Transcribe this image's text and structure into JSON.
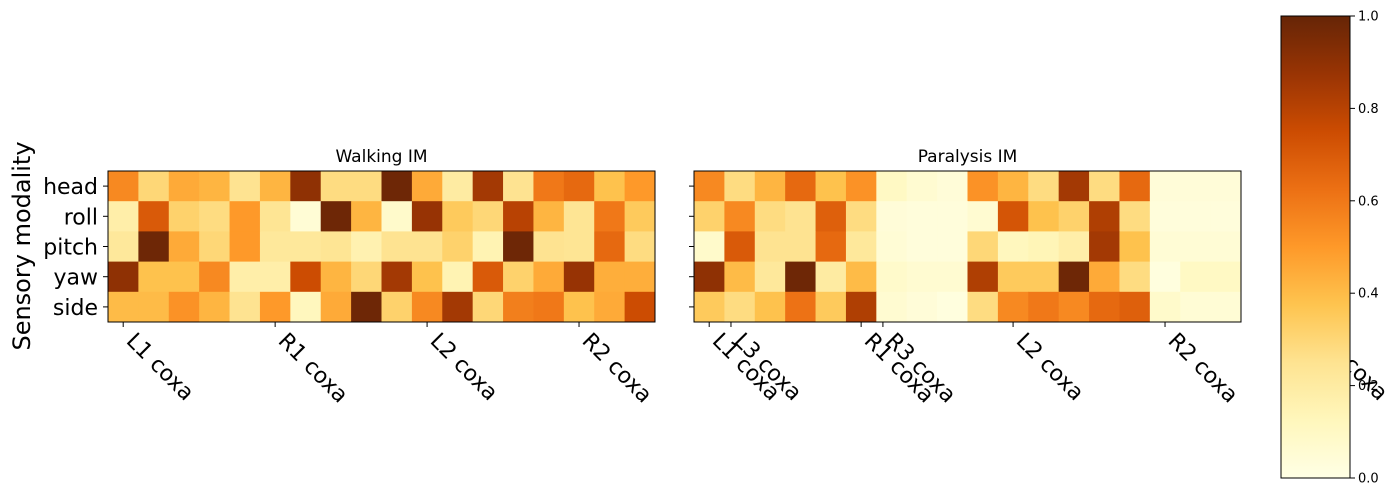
{
  "chart_data": {
    "type": "heatmap",
    "ylabel": "Sensory modality",
    "rows": [
      "head",
      "roll",
      "pitch",
      "yaw",
      "side"
    ],
    "xtick_labels": [
      "L1 coxa",
      "R1 coxa",
      "L2 coxa",
      "R2 coxa",
      "L3 coxa",
      "R3 coxa"
    ],
    "xtick_columns": [
      0,
      5,
      10,
      15,
      20,
      25
    ],
    "colormap": "YlOrBr",
    "vmin": 0,
    "vmax": 1,
    "colorbar": {
      "ticks": [
        0.0,
        0.2,
        0.4,
        0.6,
        0.8,
        1.0
      ],
      "tick_labels": [
        "0.0",
        "0.2",
        "0.4",
        "0.6",
        "0.8",
        "1.0"
      ],
      "placement": "right"
    },
    "panels": [
      {
        "title": "Walking IM",
        "show_row_labels": true,
        "values": [
          [
            0.55,
            0.3,
            0.45,
            0.42,
            0.25,
            0.42,
            0.9,
            0.28,
            0.28,
            0.98,
            0.45,
            0.2,
            0.85,
            0.25,
            0.6,
            0.65,
            0.38,
            0.5
          ],
          [
            0.18,
            0.7,
            0.32,
            0.28,
            0.5,
            0.24,
            0.05,
            0.98,
            0.42,
            0.08,
            0.88,
            0.35,
            0.3,
            0.8,
            0.42,
            0.24,
            0.6,
            0.35
          ],
          [
            0.22,
            0.98,
            0.45,
            0.3,
            0.5,
            0.22,
            0.22,
            0.24,
            0.16,
            0.25,
            0.25,
            0.32,
            0.15,
            0.98,
            0.25,
            0.24,
            0.65,
            0.28
          ],
          [
            0.9,
            0.38,
            0.38,
            0.55,
            0.18,
            0.18,
            0.75,
            0.42,
            0.3,
            0.85,
            0.38,
            0.15,
            0.7,
            0.32,
            0.45,
            0.88,
            0.44,
            0.44
          ],
          [
            0.4,
            0.4,
            0.52,
            0.42,
            0.25,
            0.5,
            0.12,
            0.45,
            0.98,
            0.32,
            0.55,
            0.85,
            0.3,
            0.58,
            0.6,
            0.38,
            0.45,
            0.75
          ]
        ]
      },
      {
        "title": "Paralysis IM",
        "show_row_labels": false,
        "values": [
          [
            0.55,
            0.28,
            0.42,
            0.65,
            0.38,
            0.52,
            0.1,
            0.06,
            0.04,
            0.52,
            0.42,
            0.28,
            0.85,
            0.28,
            0.65,
            0.04,
            0.04,
            0.04
          ],
          [
            0.32,
            0.55,
            0.28,
            0.25,
            0.68,
            0.28,
            0.04,
            0.03,
            0.03,
            0.06,
            0.72,
            0.38,
            0.32,
            0.82,
            0.28,
            0.03,
            0.03,
            0.03
          ],
          [
            0.08,
            0.7,
            0.25,
            0.25,
            0.65,
            0.22,
            0.05,
            0.03,
            0.03,
            0.3,
            0.12,
            0.14,
            0.18,
            0.85,
            0.38,
            0.05,
            0.05,
            0.05
          ],
          [
            0.9,
            0.4,
            0.22,
            0.98,
            0.2,
            0.4,
            0.08,
            0.06,
            0.06,
            0.82,
            0.35,
            0.35,
            0.98,
            0.45,
            0.28,
            0.02,
            0.1,
            0.1
          ],
          [
            0.35,
            0.28,
            0.38,
            0.62,
            0.35,
            0.82,
            0.06,
            0.04,
            0.02,
            0.28,
            0.55,
            0.6,
            0.55,
            0.65,
            0.68,
            0.08,
            0.05,
            0.05
          ]
        ]
      }
    ]
  }
}
